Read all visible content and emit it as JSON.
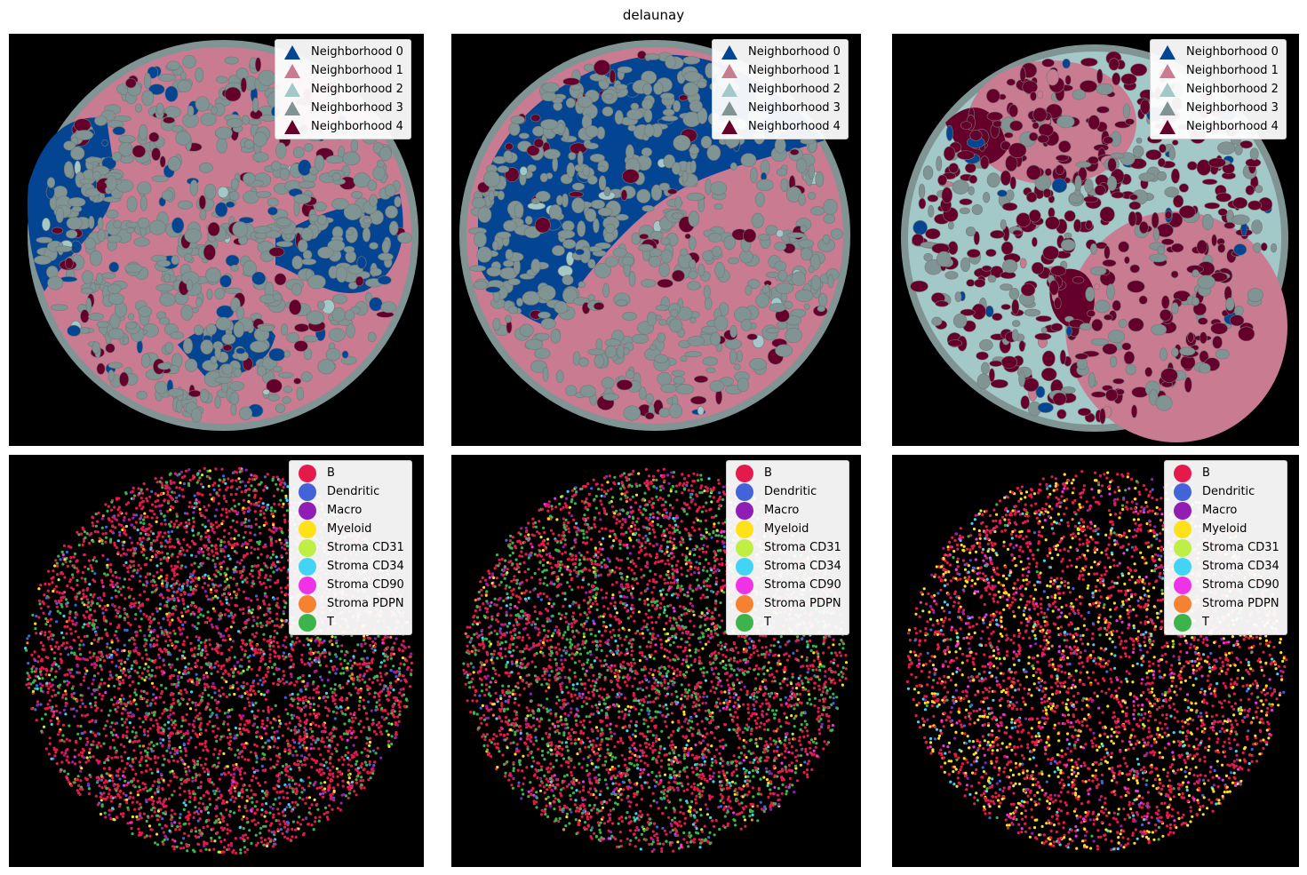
{
  "figure": {
    "title": "delaunay"
  },
  "neighborhood_legend": [
    {
      "label": "Neighborhood 0",
      "color": "#034592",
      "marker": "triangle-up"
    },
    {
      "label": "Neighborhood 1",
      "color": "#C97B92",
      "marker": "triangle-up"
    },
    {
      "label": "Neighborhood 2",
      "color": "#A3C8C8",
      "marker": "triangle-up"
    },
    {
      "label": "Neighborhood 3",
      "color": "#7F9493",
      "marker": "triangle-up"
    },
    {
      "label": "Neighborhood 4",
      "color": "#65002B",
      "marker": "triangle-up"
    }
  ],
  "celltype_legend": [
    {
      "label": "B",
      "color": "#E6194B",
      "marker": "circle"
    },
    {
      "label": "Dendritic",
      "color": "#4363D8",
      "marker": "circle"
    },
    {
      "label": "Macro",
      "color": "#911EB4",
      "marker": "circle"
    },
    {
      "label": "Myeloid",
      "color": "#FFE119",
      "marker": "circle"
    },
    {
      "label": "Stroma CD31",
      "color": "#BFEF45",
      "marker": "circle"
    },
    {
      "label": "Stroma CD34",
      "color": "#42D4F4",
      "marker": "circle"
    },
    {
      "label": "Stroma CD90",
      "color": "#F032E6",
      "marker": "circle"
    },
    {
      "label": "Stroma PDPN",
      "color": "#F58231",
      "marker": "circle"
    },
    {
      "label": "T",
      "color": "#3CB44B",
      "marker": "circle"
    }
  ],
  "panels": [
    {
      "kind": "neighborhood",
      "background": "#000000",
      "dominant": "Neighborhood 1",
      "secondary": "Neighborhood 3"
    },
    {
      "kind": "neighborhood",
      "background": "#000000",
      "dominant": "Neighborhood 1",
      "secondary": "Neighborhood 0"
    },
    {
      "kind": "neighborhood",
      "background": "#000000",
      "dominant": "Neighborhood 2",
      "secondary": "Neighborhood 1"
    },
    {
      "kind": "celltype",
      "background": "#000000",
      "dominant": "B",
      "secondary": "T"
    },
    {
      "kind": "celltype",
      "background": "#000000",
      "dominant": "B",
      "secondary": "T"
    },
    {
      "kind": "celltype",
      "background": "#000000",
      "dominant": "B",
      "secondary": "Myeloid"
    }
  ]
}
